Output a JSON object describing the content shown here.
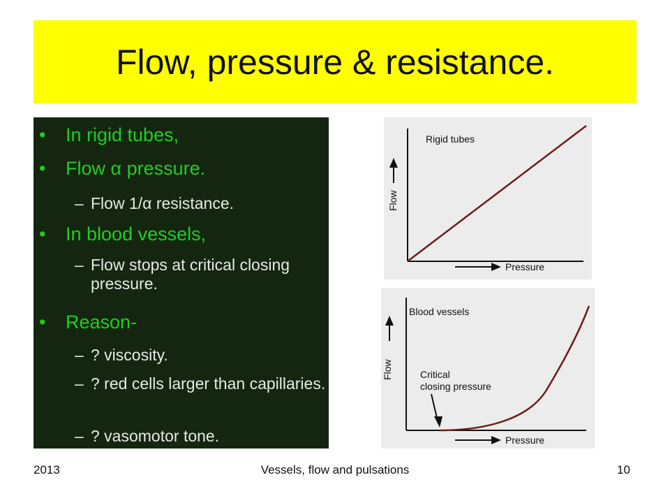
{
  "title": "Flow, pressure & resistance.",
  "bullets": [
    {
      "text": "In rigid tubes,"
    },
    {
      "text": "Flow α pressure."
    },
    {
      "text": "Flow 1/α resistance."
    },
    {
      "text": "In blood vessels,"
    },
    {
      "text": "Flow stops at critical closing pressure."
    },
    {
      "text": "Reason-"
    },
    {
      "text": "? viscosity."
    },
    {
      "text": "? red cells larger than capillaries."
    },
    {
      "text": "? vasomotor tone."
    }
  ],
  "figure": {
    "top_panel": {
      "label": "Rigid tubes",
      "x_axis": "Pressure",
      "y_axis": "Flow"
    },
    "bottom_panel": {
      "label": "Blood vessels",
      "annotation_line1": "Critical",
      "annotation_line2": "closing pressure",
      "x_axis": "Pressure",
      "y_axis": "Flow"
    }
  },
  "footer": {
    "left": "2013",
    "center": "Vessels, flow and pulsations",
    "right": "10"
  },
  "colors": {
    "title_bg": "#ffff00",
    "content_bg": "#14260f",
    "bullet_l1": "#22cc22",
    "bullet_l2": "#e8e8e8"
  }
}
